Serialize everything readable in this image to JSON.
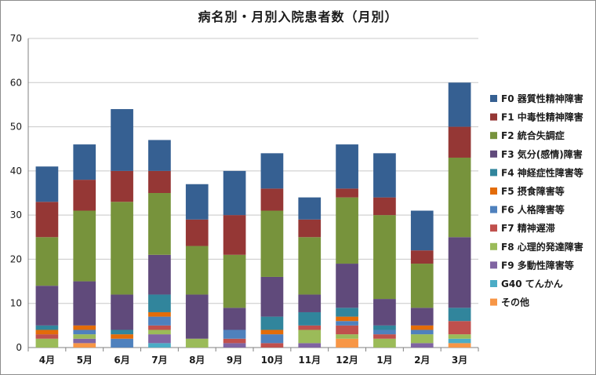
{
  "chart_data": {
    "type": "bar",
    "stacked": true,
    "title": "病名別・月別入院患者数（月別）",
    "ylim": [
      0,
      70
    ],
    "yticks": [
      0,
      10,
      20,
      30,
      40,
      50,
      60,
      70
    ],
    "grid": true,
    "legend_position": "right",
    "categories": [
      "4月",
      "5月",
      "6月",
      "7月",
      "8月",
      "9月",
      "10月",
      "11月",
      "12月",
      "1月",
      "2月",
      "3月"
    ],
    "series": [
      {
        "name": "その他",
        "color": "#f79646",
        "values": [
          0,
          1,
          0,
          0,
          0,
          0,
          0,
          0,
          2,
          0,
          0,
          1
        ]
      },
      {
        "name": "G40 てんかん",
        "color": "#4bacc6",
        "values": [
          0,
          0,
          0,
          1,
          0,
          0,
          0,
          0,
          0,
          0,
          0,
          1
        ]
      },
      {
        "name": "F9 多動性障害等",
        "color": "#8064a2",
        "values": [
          0,
          1,
          0,
          2,
          0,
          1,
          0,
          1,
          0,
          0,
          1,
          0
        ]
      },
      {
        "name": "F8 心理的発達障害",
        "color": "#9bbb59",
        "values": [
          2,
          1,
          0,
          1,
          2,
          0,
          0,
          3,
          1,
          2,
          2,
          1
        ]
      },
      {
        "name": "F7 精神遅滞",
        "color": "#c0504d",
        "values": [
          1,
          0,
          0,
          1,
          0,
          1,
          1,
          1,
          2,
          1,
          0,
          3
        ]
      },
      {
        "name": "F6 人格障害等",
        "color": "#4f81bd",
        "values": [
          0,
          1,
          2,
          2,
          0,
          2,
          2,
          0,
          1,
          1,
          1,
          0
        ]
      },
      {
        "name": "F5 摂食障害等",
        "color": "#e36c09",
        "values": [
          1,
          1,
          1,
          1,
          0,
          0,
          1,
          0,
          1,
          0,
          1,
          0
        ]
      },
      {
        "name": "F4 神経症性障害等",
        "color": "#31859c",
        "values": [
          1,
          0,
          1,
          4,
          0,
          0,
          3,
          3,
          2,
          1,
          0,
          3
        ]
      },
      {
        "name": "F3 気分(感情)障害",
        "color": "#604a7b",
        "values": [
          9,
          10,
          8,
          9,
          10,
          5,
          9,
          4,
          10,
          6,
          4,
          16
        ]
      },
      {
        "name": "F2 統合失調症",
        "color": "#77933c",
        "values": [
          11,
          16,
          21,
          14,
          11,
          12,
          15,
          13,
          15,
          19,
          10,
          18
        ]
      },
      {
        "name": "F1 中毒性精神障害",
        "color": "#953735",
        "values": [
          8,
          7,
          7,
          5,
          6,
          9,
          5,
          4,
          2,
          4,
          3,
          7
        ]
      },
      {
        "name": "F0 器質性精神障害",
        "color": "#366092",
        "values": [
          8,
          8,
          14,
          7,
          8,
          10,
          8,
          5,
          10,
          10,
          9,
          10
        ]
      }
    ]
  }
}
